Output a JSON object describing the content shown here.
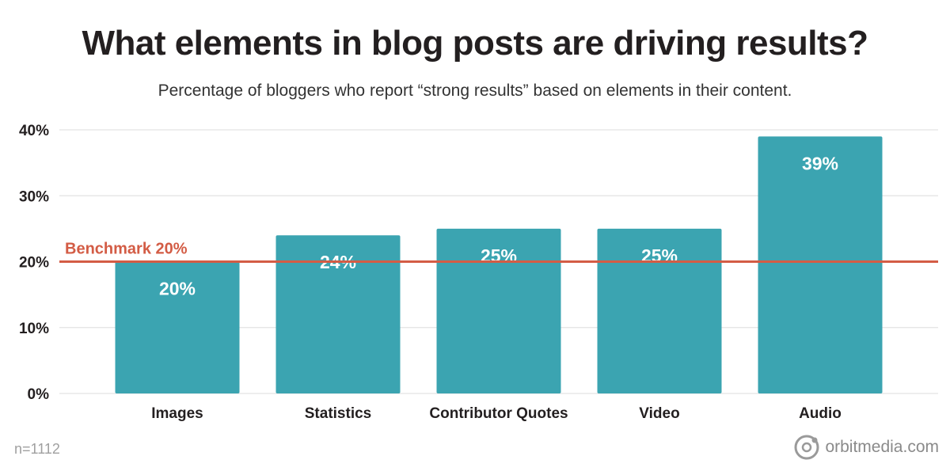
{
  "title": "What elements in blog posts are driving results?",
  "subtitle": "Percentage of bloggers who report “strong results” based on elements in their content.",
  "footnote": "n=1112",
  "brand": {
    "text": "orbitmedia.com",
    "icon": "orbit-logo-icon"
  },
  "colors": {
    "bar": "#3ba4b1",
    "benchmark": "#d35c45",
    "grid": "#e3e3e3",
    "text": "#231f20"
  },
  "chart_data": {
    "type": "bar",
    "categories": [
      "Images",
      "Statistics",
      "Contributor Quotes",
      "Video",
      "Audio"
    ],
    "values": [
      20,
      24,
      25,
      25,
      39
    ],
    "value_labels": [
      "20%",
      "24%",
      "25%",
      "25%",
      "39%"
    ],
    "y_ticks": [
      "0%",
      "10%",
      "20%",
      "30%",
      "40%"
    ],
    "y_tick_values": [
      0,
      10,
      20,
      30,
      40
    ],
    "ylim": [
      0,
      40
    ],
    "grid": true,
    "benchmark": {
      "label": "Benchmark 20%",
      "value": 20
    }
  }
}
